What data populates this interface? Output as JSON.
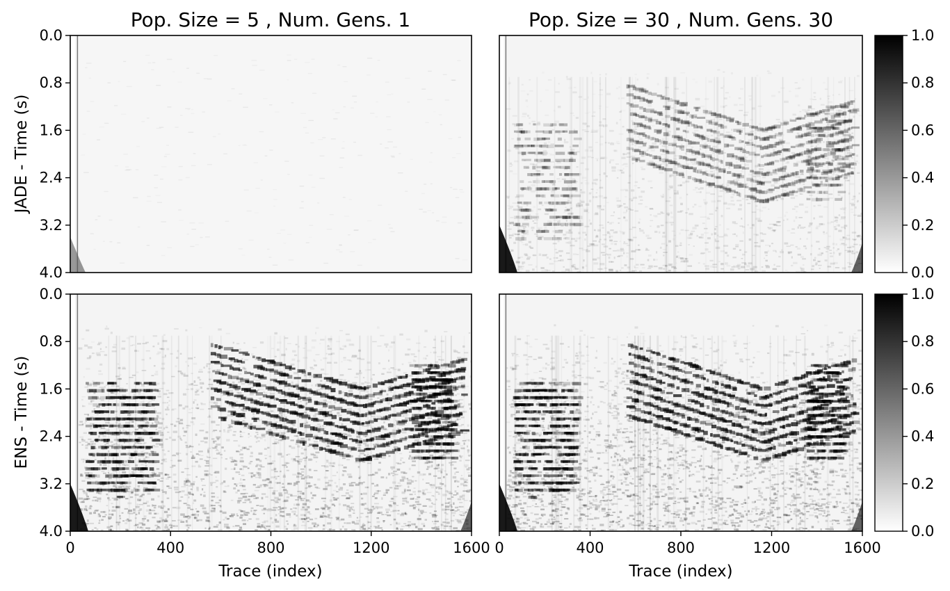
{
  "chart_data": [
    {
      "type": "heatmap",
      "panel": "top-left",
      "title": "Pop. Size = 5 , Num. Gens. 1",
      "ylabel": "JADE - Time (s)",
      "xlabel": "",
      "xlim": [
        0,
        1600
      ],
      "ylim": [
        4.0,
        0.0
      ],
      "xticks": [],
      "yticks": [
        "0.0",
        "0.8",
        "1.6",
        "2.4",
        "3.2",
        "4.0"
      ],
      "colormap": "gray_r",
      "intensity": "near-white",
      "colorbar": false
    },
    {
      "type": "heatmap",
      "panel": "top-right",
      "title": "Pop. Size = 30 , Num. Gens. 30",
      "ylabel": "",
      "xlabel": "",
      "xlim": [
        0,
        1600
      ],
      "ylim": [
        4.0,
        0.0
      ],
      "xticks": [],
      "yticks": [],
      "colormap": "gray_r",
      "intensity": "faint reflectors",
      "colorbar": true,
      "colorbar_range": [
        0.0,
        1.0
      ],
      "colorbar_ticks": [
        "0.0",
        "0.2",
        "0.4",
        "0.6",
        "0.8",
        "1.0"
      ]
    },
    {
      "type": "heatmap",
      "panel": "bottom-left",
      "title": "",
      "ylabel": "ENS - Time (s)",
      "xlabel": "Trace (index)",
      "xlim": [
        0,
        1600
      ],
      "ylim": [
        4.0,
        0.0
      ],
      "xticks": [
        "0",
        "400",
        "800",
        "1200",
        "1600"
      ],
      "yticks": [
        "0.0",
        "0.8",
        "1.6",
        "2.4",
        "3.2",
        "4.0"
      ],
      "colormap": "gray_r",
      "intensity": "strong reflectors",
      "colorbar": false
    },
    {
      "type": "heatmap",
      "panel": "bottom-right",
      "title": "",
      "ylabel": "",
      "xlabel": "Trace (index)",
      "xlim": [
        0,
        1600
      ],
      "ylim": [
        4.0,
        0.0
      ],
      "xticks": [
        "0",
        "400",
        "800",
        "1200",
        "1600"
      ],
      "yticks": [],
      "colormap": "gray_r",
      "intensity": "strong reflectors",
      "colorbar": true,
      "colorbar_range": [
        0.0,
        1.0
      ],
      "colorbar_ticks": [
        "0.0",
        "0.2",
        "0.4",
        "0.6",
        "0.8",
        "1.0"
      ]
    }
  ]
}
